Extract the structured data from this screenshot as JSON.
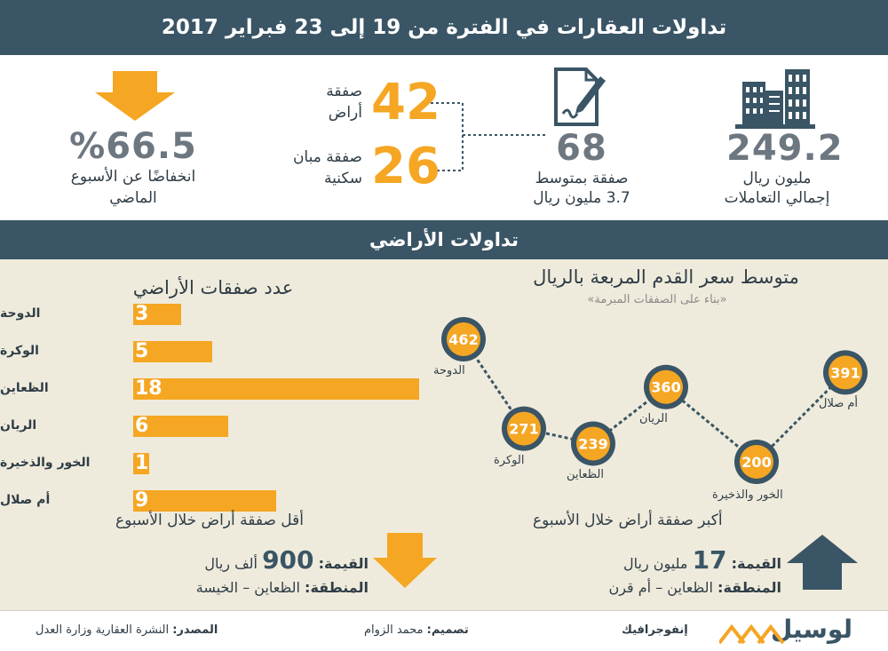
{
  "header": {
    "title": "تداولات العقارات في الفترة من 19 إلى 23 فبراير 2017"
  },
  "summary": {
    "total_value": "249.2",
    "total_unit": "مليون ريال",
    "total_caption": "إجمالي التعاملات",
    "deals_count": "68",
    "deals_caption_1": "صفقة بمتوسط",
    "deals_caption_2": "3.7 مليون ريال",
    "land_count": "42",
    "land_label_1": "صفقة",
    "land_label_2": "أراض",
    "building_count": "26",
    "building_label_1": "صفقة مبان",
    "building_label_2": "سكنية",
    "decline_value": "%66.5",
    "decline_caption_1": "انخفاضًا عن الأسبوع",
    "decline_caption_2": "الماضي",
    "colors": {
      "banner": "#3a5565",
      "accent": "#f5a623",
      "panel": "#efebdc"
    }
  },
  "section": {
    "title": "تداولات الأراضي"
  },
  "bar_chart_title": "عدد صفقات الأراضي",
  "line_chart_title": "متوسط سعر القدم المربعة بالريال",
  "line_chart_subtitle": "«بناء على الصفقات المبرمة»",
  "chart_data": [
    {
      "type": "bar",
      "orientation": "horizontal",
      "title": "عدد صفقات الأراضي",
      "categories": [
        "الدوحة",
        "الوكرة",
        "الظعاين",
        "الريان",
        "الخور والذخيرة",
        "أم صلال"
      ],
      "values": [
        3,
        5,
        18,
        6,
        1,
        9
      ],
      "xlim": [
        0,
        18
      ],
      "grid": false
    },
    {
      "type": "line",
      "title": "متوسط سعر القدم المربعة بالريال",
      "subtitle": "«بناء على الصفقات المبرمة»",
      "categories": [
        "الدوحة",
        "الوكرة",
        "الظعاين",
        "الريان",
        "الخور والذخيرة",
        "أم صلال"
      ],
      "values": [
        462,
        271,
        239,
        360,
        200,
        391
      ],
      "grid": false
    }
  ],
  "lowest_deal": {
    "title": "أقل صفقة أراض خلال الأسبوع",
    "value_label": "القيمة:",
    "value": "900",
    "value_unit": "ألف ريال",
    "area_label": "المنطقة:",
    "area": "الظعاين – الخيسة"
  },
  "highest_deal": {
    "title": "أكبر صفقة أراض خلال الأسبوع",
    "value_label": "القيمة:",
    "value": "17",
    "value_unit": "مليون ريال",
    "area_label": "المنطقة:",
    "area": "الظعاين – أم قرن"
  },
  "footer": {
    "brand": "لوسيل",
    "brand_suffix": "إنفوجرافيك",
    "design_label": "تصميم:",
    "design_name": "محمد الزوام",
    "source_label": "المصدر:",
    "source_name": "النشرة العقارية وزارة العدل"
  }
}
